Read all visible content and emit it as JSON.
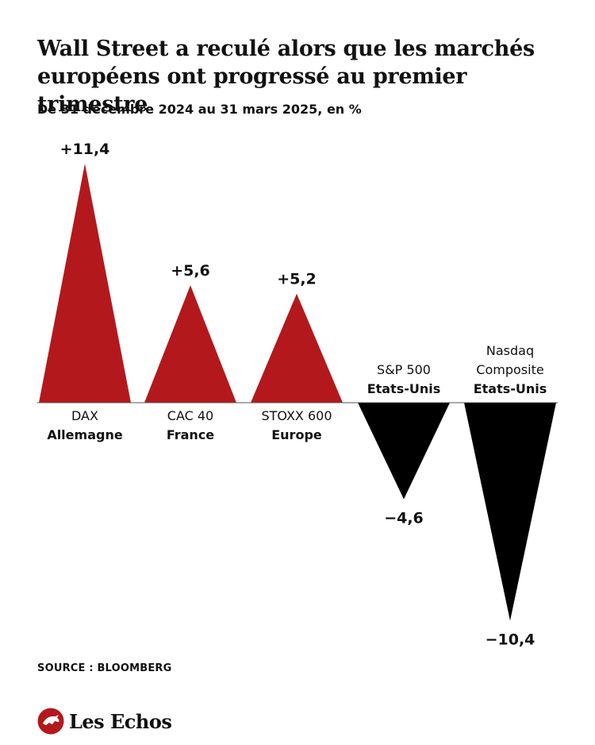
{
  "title_lines": [
    "Wall Street a reculé alors que les marchés",
    "européens ont progressé au premier trimestre"
  ],
  "subtitle": "De 31 décembre 2024 au 31 mars 2025, en %",
  "source": "SOURCE : BLOOMBERG",
  "brand": "Les Echos",
  "colors": {
    "positive": "#b3191c",
    "negative": "#000000",
    "text": "#111111"
  },
  "chart_data": {
    "type": "bar",
    "categories": [
      "DAX",
      "CAC 40",
      "STOXX 600",
      "S&P 500",
      "Nasdaq Composite"
    ],
    "category_lines": [
      [
        "DAX"
      ],
      [
        "CAC 40"
      ],
      [
        "STOXX 600"
      ],
      [
        "S&P 500"
      ],
      [
        "Nasdaq",
        "Composite"
      ]
    ],
    "regions": [
      "Allemagne",
      "France",
      "Europe",
      "Etats-Unis",
      "Etats-Unis"
    ],
    "values": [
      11.4,
      5.6,
      5.2,
      -4.6,
      -10.4
    ],
    "value_labels": [
      "+11,4",
      "+5,6",
      "+5,2",
      "−4,6",
      "−10,4"
    ],
    "title": "Wall Street a reculé alors que les marchés européens ont progressé au premier trimestre",
    "xlabel": "",
    "ylabel": "",
    "grid": false,
    "legend": "none"
  }
}
